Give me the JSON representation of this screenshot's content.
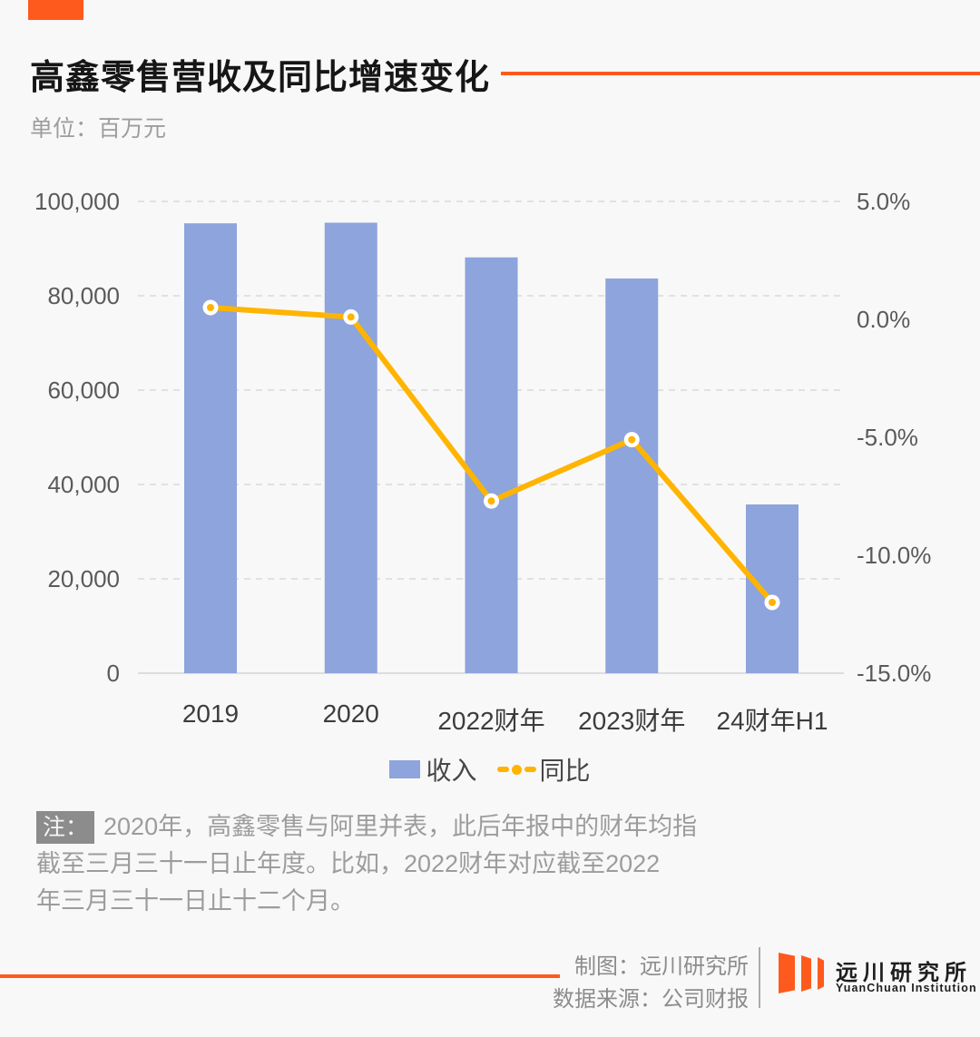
{
  "header": {
    "title": "高鑫零售营收及同比增速变化",
    "subtitle": "单位：百万元"
  },
  "colors": {
    "accent_orange": "#FF5A1E",
    "bar_blue": "#8DA4DC",
    "line_yellow": "#FFB400",
    "grid_gray": "#D9D9D9",
    "axis_text_gray": "#5A5A5A",
    "category_text_gray": "#3C3C3C",
    "note_gray": "#9C9C9C"
  },
  "chart_data": {
    "type": "bar",
    "subtype": "dual-axis bar + line",
    "title": "高鑫零售营收及同比增速变化",
    "unit": "百万元",
    "categories": [
      "2019",
      "2020",
      "2022财年",
      "2023财年",
      "24财年H1"
    ],
    "series": [
      {
        "name": "收入",
        "type": "bar",
        "axis": "left",
        "values": [
          95357,
          95486,
          88134,
          83662,
          35768
        ]
      },
      {
        "name": "同比",
        "type": "line",
        "axis": "right",
        "values_percent": [
          0.5,
          0.1,
          -7.7,
          -5.1,
          -12.0
        ]
      }
    ],
    "left_axis": {
      "min": 0,
      "max": 100000,
      "step": 20000,
      "ticks": [
        "100,000",
        "80,000",
        "60,000",
        "40,000",
        "20,000",
        "0"
      ]
    },
    "right_axis": {
      "min": -15,
      "max": 5,
      "step": 5,
      "ticks": [
        "5.0%",
        "0.0%",
        "-5.0%",
        "-10.0%",
        "-15.0%"
      ]
    },
    "grid": "horizontal dashed",
    "legend_position": "bottom center"
  },
  "legend": {
    "income_label": "收入",
    "yoy_label": "同比"
  },
  "note": {
    "badge": "注：",
    "lines": [
      "2020年，高鑫零售与阿里并表，此后年报中的财年均指",
      "截至三月三十一日止年度。比如，2022财年对应截至2022",
      "年三月三十一日止十二个月。"
    ]
  },
  "footer": {
    "credit_line1": "制图：远川研究所",
    "credit_line2": "数据来源：公司财报",
    "logo_cn": "远川研究所",
    "logo_en": "YuanChuan Institution"
  }
}
